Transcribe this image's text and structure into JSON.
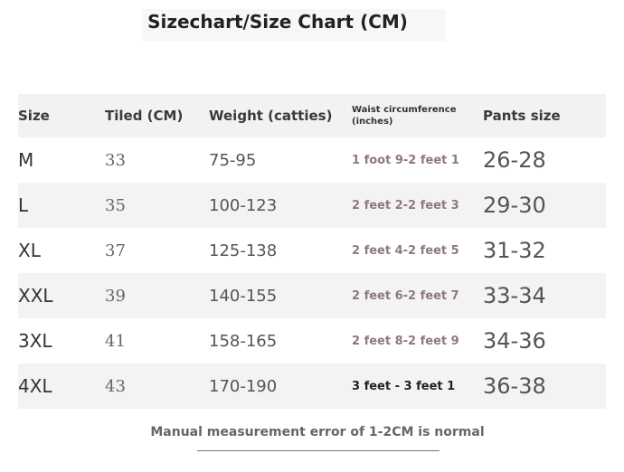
{
  "title": "Sizechart/Size Chart (CM)",
  "headers": {
    "size": "Size",
    "tiled": "Tiled (CM)",
    "weight": "Weight (catties)",
    "waist": "Waist circumference (inches)",
    "pants": "Pants size"
  },
  "rows": [
    {
      "size": "M",
      "tiled": "33",
      "weight": "75-95",
      "waist": "1 foot 9-2 feet 1",
      "pants": "26-28"
    },
    {
      "size": "L",
      "tiled": "35",
      "weight": "100-123",
      "waist": "2 feet 2-2 feet 3",
      "pants": "29-30"
    },
    {
      "size": "XL",
      "tiled": "37",
      "weight": "125-138",
      "waist": "2 feet 4-2 feet 5",
      "pants": "31-32"
    },
    {
      "size": "XXL",
      "tiled": "39",
      "weight": "140-155",
      "waist": "2 feet 6-2 feet 7",
      "pants": "33-34"
    },
    {
      "size": "3XL",
      "tiled": "41",
      "weight": "158-165",
      "waist": "2 feet 8-2 feet 9",
      "pants": "34-36"
    },
    {
      "size": "4XL",
      "tiled": "43",
      "weight": "170-190",
      "waist": "3 feet - 3 feet 1",
      "pants": "36-38"
    }
  ],
  "note": "Manual measurement error of 1-2CM is normal",
  "colors": {
    "waist_text": "#8f7a7a",
    "stripe": "#f3f3f3"
  }
}
